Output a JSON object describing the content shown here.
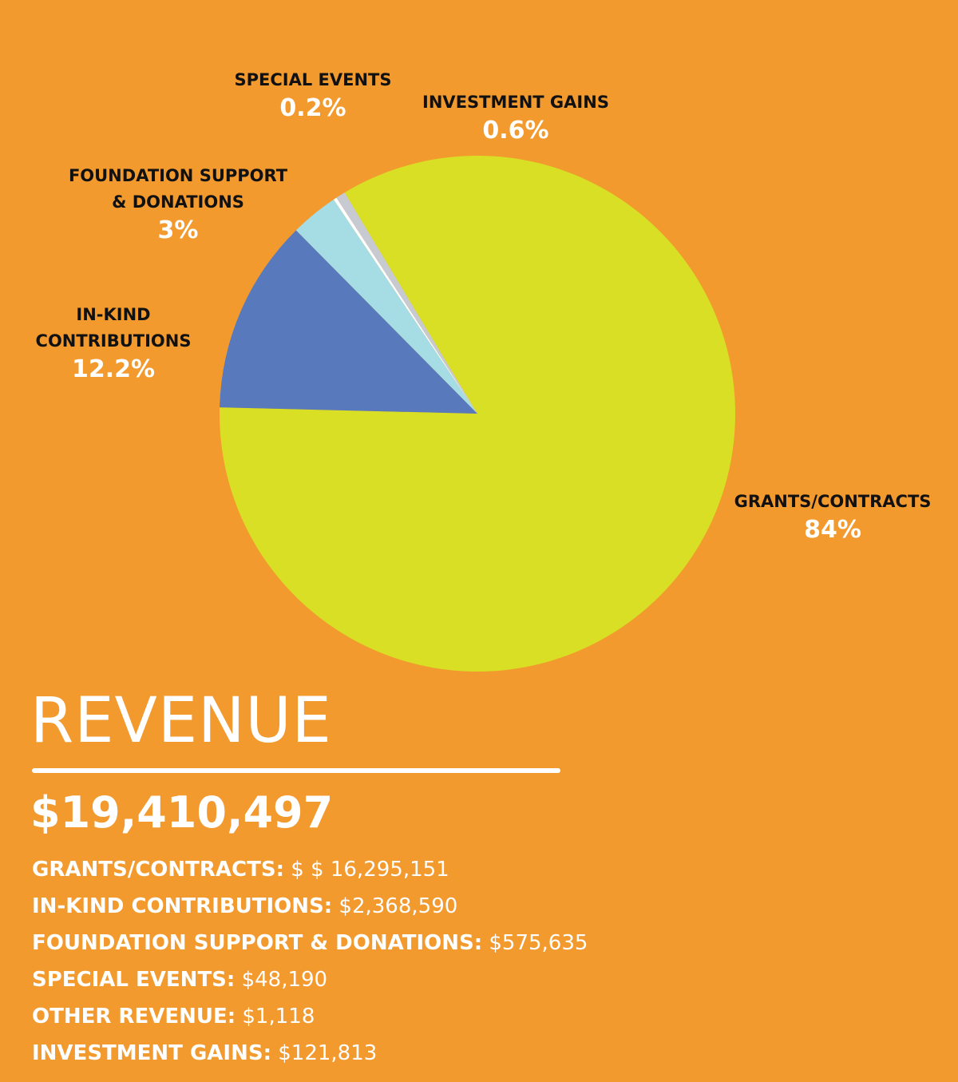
{
  "chart_data": {
    "type": "pie",
    "title": "",
    "slices": [
      {
        "label": "GRANTS/CONTRACTS",
        "value": 84,
        "pct_label": "84%",
        "color": "#D8DF24"
      },
      {
        "label": "IN-KIND CONTRIBUTIONS",
        "value": 12.2,
        "pct_label": "12.2%",
        "color": "#5879BB"
      },
      {
        "label": "FOUNDATION SUPPORT & DONATIONS",
        "value": 3,
        "pct_label": "3%",
        "color": "#A6DDE4"
      },
      {
        "label": "SPECIAL EVENTS",
        "value": 0.2,
        "pct_label": "0.2%",
        "color": "#FFFFFF"
      },
      {
        "label": "INVESTMENT GAINS",
        "value": 0.6,
        "pct_label": "0.6%",
        "color": "#C7CBD1"
      }
    ]
  },
  "labels": {
    "grants": {
      "line1": "GRANTS/CONTRACTS",
      "pct": "84%"
    },
    "inkind": {
      "line1": "IN-KIND",
      "line2": "CONTRIBUTIONS",
      "pct": "12.2%"
    },
    "foundation": {
      "line1": "FOUNDATION SUPPORT",
      "line2": "& DONATIONS",
      "pct": "3%"
    },
    "special": {
      "line1": "SPECIAL EVENTS",
      "pct": "0.2%"
    },
    "investment": {
      "line1": "INVESTMENT GAINS",
      "pct": "0.6%"
    }
  },
  "summary": {
    "title": "REVENUE",
    "total": "$19,410,497",
    "items": [
      {
        "name": "GRANTS/CONTRACTS:",
        "value": "$ $ 16,295,151"
      },
      {
        "name": "IN-KIND CONTRIBUTIONS:",
        "value": "$2,368,590"
      },
      {
        "name": "FOUNDATION SUPPORT & DONATIONS:",
        "value": "$575,635"
      },
      {
        "name": "SPECIAL EVENTS:",
        "value": "$48,190"
      },
      {
        "name": "OTHER REVENUE:",
        "value": "$1,118"
      },
      {
        "name": "INVESTMENT GAINS:",
        "value": "$121,813"
      }
    ]
  },
  "colors": {
    "background": "#F29A2E",
    "label_text": "#111111",
    "highlight_text": "#FFFFFF"
  }
}
